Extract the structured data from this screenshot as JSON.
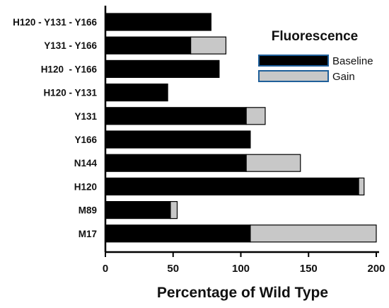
{
  "chart_data": {
    "type": "bar",
    "orientation": "horizontal",
    "stacked": true,
    "xlabel": "Percentage of Wild Type",
    "ylabel": "",
    "xlim": [
      0,
      200
    ],
    "xticks": [
      0,
      50,
      100,
      150,
      200
    ],
    "grid": false,
    "categories": [
      "H120 - Y131 - Y166",
      "Y131 - Y166",
      "H120  - Y166",
      "H120 - Y131",
      "Y131",
      "Y166",
      "N144",
      "H120",
      "M89",
      "M17"
    ],
    "legend": {
      "title": "Fluorescence",
      "position": "top-right"
    },
    "series": [
      {
        "name": "Baseline",
        "color": "#000000",
        "values": [
          78,
          63,
          84,
          46,
          104,
          107,
          104,
          187,
          48,
          107
        ]
      },
      {
        "name": "Gain",
        "color": "#c8c8c8",
        "values": [
          0,
          26,
          0,
          0,
          14,
          0,
          40,
          4,
          5,
          93
        ]
      }
    ]
  }
}
